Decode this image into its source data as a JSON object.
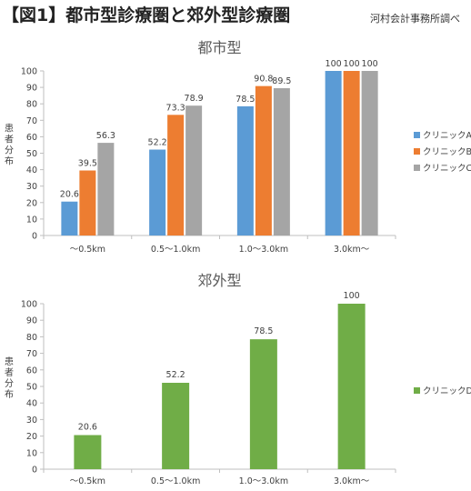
{
  "figure_title": "【図1】都市型診療圏と郊外型診療圏",
  "source_note": "河村会計事務所調べ",
  "colors": {
    "clinic_a": "#5B9BD5",
    "clinic_b": "#ED7D31",
    "clinic_c": "#A5A5A5",
    "clinic_d": "#70AD47"
  },
  "chart_data": [
    {
      "type": "bar",
      "title": "都市型",
      "ylabel": "患者分布",
      "xlabel": "",
      "ylim": [
        0,
        100
      ],
      "yticks": [
        0,
        10,
        20,
        30,
        40,
        50,
        60,
        70,
        80,
        90,
        100
      ],
      "grid": false,
      "legend_position": "right",
      "categories": [
        "〜0.5km",
        "0.5〜1.0km",
        "1.0〜3.0km",
        "3.0km〜"
      ],
      "series": [
        {
          "name": "クリニックA",
          "color": "#5B9BD5",
          "values": [
            20.6,
            52.2,
            78.5,
            100
          ],
          "labels": [
            "20.6",
            "52.2",
            "78.5",
            "100"
          ]
        },
        {
          "name": "クリニックB",
          "color": "#ED7D31",
          "values": [
            39.5,
            73.3,
            90.8,
            100
          ],
          "labels": [
            "39.5",
            "73.3",
            "90.8",
            "100"
          ]
        },
        {
          "name": "クリニックC",
          "color": "#A5A5A5",
          "values": [
            56.3,
            78.9,
            89.5,
            100
          ],
          "labels": [
            "56.3",
            "78.9",
            "89.5",
            "100"
          ]
        }
      ]
    },
    {
      "type": "bar",
      "title": "郊外型",
      "ylabel": "患者分布",
      "xlabel": "",
      "ylim": [
        0,
        100
      ],
      "yticks": [
        0,
        10,
        20,
        30,
        40,
        50,
        60,
        70,
        80,
        90,
        100
      ],
      "grid": false,
      "legend_position": "right",
      "categories": [
        "〜0.5km",
        "0.5〜1.0km",
        "1.0〜3.0km",
        "3.0km〜"
      ],
      "series": [
        {
          "name": "クリニックD",
          "color": "#70AD47",
          "values": [
            20.6,
            52.2,
            78.5,
            100
          ],
          "labels": [
            "20.6",
            "52.2",
            "78.5",
            "100"
          ]
        }
      ]
    }
  ]
}
